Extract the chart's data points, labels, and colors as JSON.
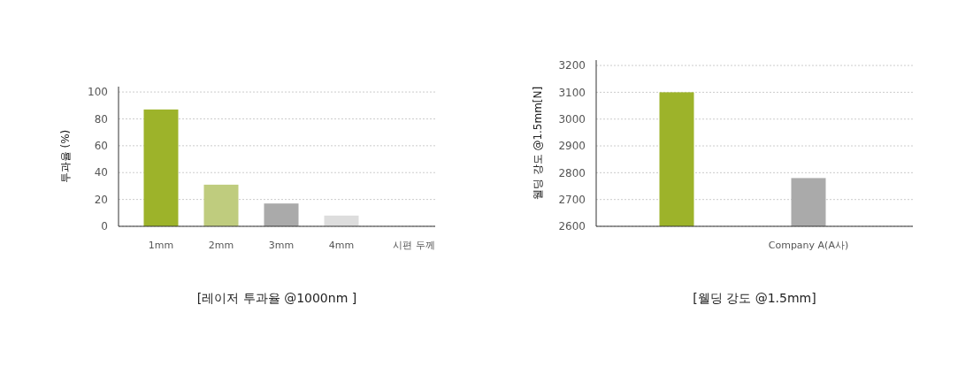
{
  "chart_data": [
    {
      "type": "bar",
      "title": "[레이저 투과율 @1000nm ]",
      "xlabel": "시편 두께",
      "ylabel": "투과율 (%)",
      "categories": [
        "1mm",
        "2mm",
        "3mm",
        "4mm"
      ],
      "values": [
        87,
        31,
        17,
        8
      ],
      "colors": [
        "#9db32a",
        "#bfcc7e",
        "#aaaaaa",
        "#dddddd"
      ],
      "ylim": [
        0,
        104
      ],
      "yticks": [
        0,
        20,
        40,
        60,
        80,
        100
      ],
      "grid": "y"
    },
    {
      "type": "bar",
      "title": "[웰딩 강도 @1.5mm]",
      "ylabel": "웰딩 강도 @1.5mm[N]",
      "categories": [
        null,
        "Company A(A사)"
      ],
      "values": [
        3100,
        2780
      ],
      "colors": [
        "#9db32a",
        "#aaaaaa"
      ],
      "ylim": [
        2600,
        3220
      ],
      "yticks": [
        2600,
        2700,
        2800,
        2900,
        3000,
        3100,
        3200
      ],
      "grid": "y"
    }
  ]
}
